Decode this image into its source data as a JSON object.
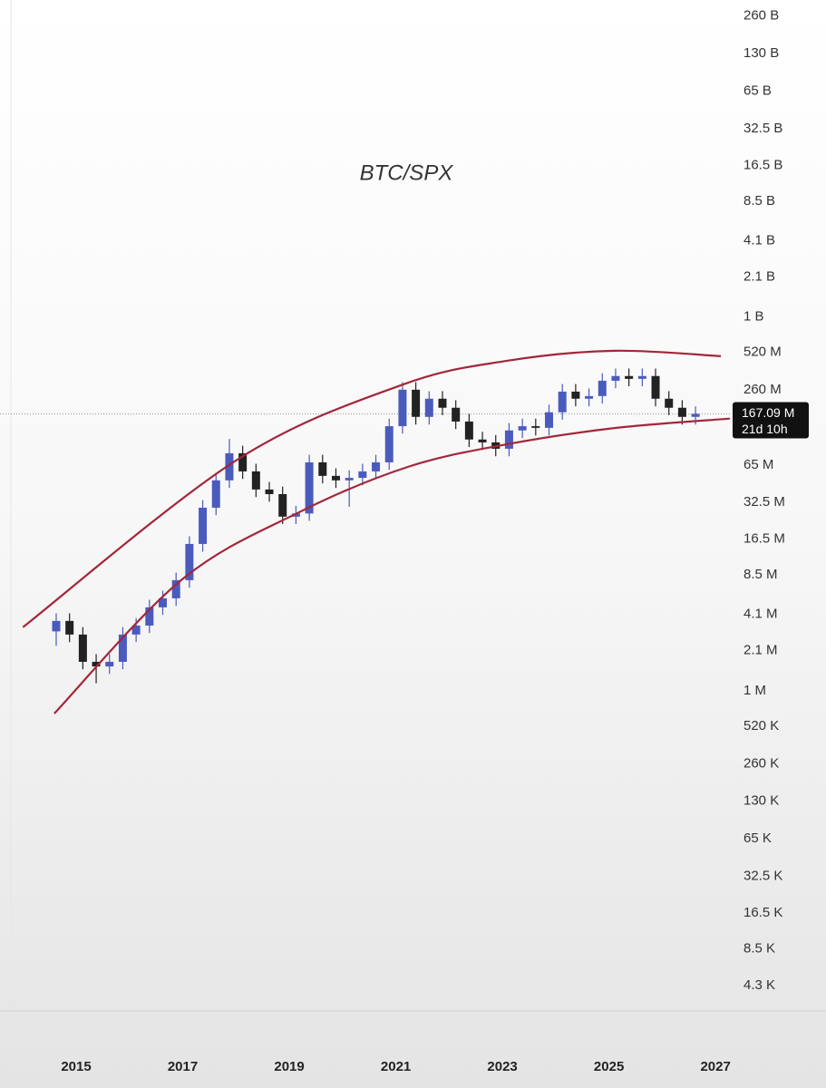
{
  "chart_data": {
    "type": "candlestick",
    "title": "BTC/SPX",
    "log_scale": true,
    "grid": false,
    "up_color": "#4b5bbd",
    "down_color": "#222222",
    "x": [
      2014.625,
      2014.875,
      2015.125,
      2015.375,
      2015.625,
      2015.875,
      2016.125,
      2016.375,
      2016.625,
      2016.875,
      2017.125,
      2017.375,
      2017.625,
      2017.875,
      2018.125,
      2018.375,
      2018.625,
      2018.875,
      2019.125,
      2019.375,
      2019.625,
      2019.875,
      2020.125,
      2020.375,
      2020.625,
      2020.875,
      2021.125,
      2021.375,
      2021.625,
      2021.875,
      2022.125,
      2022.375,
      2022.625,
      2022.875,
      2023.125,
      2023.375,
      2023.625,
      2023.875,
      2024.125,
      2024.375,
      2024.625,
      2024.875,
      2025.125,
      2025.375,
      2025.625,
      2025.875,
      2026.125,
      2026.375,
      2026.625
    ],
    "open": [
      3000000.0,
      3640000.0,
      2830000.0,
      1710000.0,
      1570000.0,
      1710000.0,
      2830000.0,
      3340000.0,
      4680000.0,
      5530000.0,
      7730000.0,
      15100000.0,
      29500000.0,
      48900000.0,
      80700000.0,
      57700000.0,
      41300000.0,
      37900000.0,
      25000000.0,
      26500000.0,
      68200000.0,
      53100000.0,
      48900000.0,
      51200000.0,
      57700000.0,
      68200000.0,
      133000000.0,
      261000000.0,
      158000000.0,
      221000000.0,
      187000000.0,
      145000000.0,
      104000000.0,
      98600000.0,
      87700000.0,
      123000000.0,
      133000000.0,
      129000000.0,
      172000000.0,
      252000000.0,
      221000000.0,
      232000000.0,
      308000000.0,
      336000000.0,
      319000000.0,
      336000000.0,
      221000000.0,
      187000000.0,
      158000000.0
    ],
    "high": [
      4190000.0,
      4190000.0,
      3250000.0,
      1970000.0,
      1970000.0,
      3250000.0,
      3840000.0,
      5380000.0,
      6360000.0,
      8890000.0,
      17400000.0,
      33900000.0,
      56200000.0,
      105000000.0,
      92800000.0,
      66400000.0,
      47500000.0,
      43600000.0,
      30500000.0,
      78400000.0,
      78400000.0,
      61100000.0,
      58900000.0,
      66400000.0,
      78400000.0,
      153000000.0,
      300000000.0,
      300000000.0,
      254000000.0,
      254000000.0,
      215000000.0,
      167000000.0,
      120000000.0,
      113000000.0,
      141000000.0,
      153000000.0,
      153000000.0,
      198000000.0,
      290000000.0,
      290000000.0,
      267000000.0,
      354000000.0,
      386000000.0,
      386000000.0,
      386000000.0,
      386000000.0,
      254000000.0,
      215000000.0,
      192000000.0
    ],
    "low": [
      2300000.0,
      2460000.0,
      1490000.0,
      1150000.0,
      1370000.0,
      1490000.0,
      2460000.0,
      2910000.0,
      4070000.0,
      4810000.0,
      6730000.0,
      13100000.0,
      25700000.0,
      42500000.0,
      50200000.0,
      35900000.0,
      33000000.0,
      21800000.0,
      21800000.0,
      23100000.0,
      46200000.0,
      42500000.0,
      30000000.0,
      44500000.0,
      50200000.0,
      59300000.0,
      116000000.0,
      137000000.0,
      137000000.0,
      163000000.0,
      126000000.0,
      90500000.0,
      85800000.0,
      76300000.0,
      76300000.0,
      107000000.0,
      112000000.0,
      112000000.0,
      150000000.0,
      192000000.0,
      192000000.0,
      202000000.0,
      268000000.0,
      278000000.0,
      278000000.0,
      192000000.0,
      163000000.0,
      137000000.0,
      137000000.0
    ],
    "close": [
      3640000.0,
      2830000.0,
      1710000.0,
      1570000.0,
      1710000.0,
      2830000.0,
      3340000.0,
      4680000.0,
      5530000.0,
      7730000.0,
      15100000.0,
      29500000.0,
      48900000.0,
      80700000.0,
      57700000.0,
      41300000.0,
      37900000.0,
      25000000.0,
      26500000.0,
      68200000.0,
      53100000.0,
      48900000.0,
      51200000.0,
      57700000.0,
      68200000.0,
      133000000.0,
      261000000.0,
      158000000.0,
      221000000.0,
      187000000.0,
      145000000.0,
      104000000.0,
      98600000.0,
      87700000.0,
      123000000.0,
      133000000.0,
      129000000.0,
      172000000.0,
      252000000.0,
      221000000.0,
      232000000.0,
      308000000.0,
      336000000.0,
      319000000.0,
      336000000.0,
      221000000.0,
      187000000.0,
      158000000.0,
      167090000.0
    ],
    "last_value_label": "167.09 M",
    "countdown": "21d 10h",
    "channel_upper": {
      "color": "#a3263a",
      "x": [
        2014.0,
        2018.0,
        2021.1,
        2023.1,
        2025.1,
        2027.1
      ],
      "values": [
        3240000.0,
        70600000.0,
        284000000.0,
        446000000.0,
        536000000.0,
        485000000.0
      ]
    },
    "channel_lower": {
      "color": "#a3263a",
      "x": [
        2014.59,
        2016.97,
        2019.19,
        2021.23,
        2023.1,
        2025.14,
        2027.27
      ],
      "values": [
        658000.0,
        7730000.0,
        27200000.0,
        62800000.0,
        95500000.0,
        129000000.0,
        153000000.0
      ]
    },
    "xlim": [
      2013.57,
      2027.27
    ],
    "xticks": [
      2015,
      2017,
      2019,
      2021,
      2023,
      2025,
      2027
    ],
    "ylim": [
      2700,
      350000000000.0
    ],
    "yticks": [
      {
        "value": 260000000000.0,
        "label": "260 B"
      },
      {
        "value": 130000000000.0,
        "label": "130 B"
      },
      {
        "value": 65000000000.0,
        "label": "65 B"
      },
      {
        "value": 32500000000.0,
        "label": "32.5 B"
      },
      {
        "value": 16500000000.0,
        "label": "16.5 B"
      },
      {
        "value": 8500000000.0,
        "label": "8.5 B"
      },
      {
        "value": 4100000000.0,
        "label": "4.1 B"
      },
      {
        "value": 2100000000.0,
        "label": "2.1 B"
      },
      {
        "value": 1000000000.0,
        "label": "1 B"
      },
      {
        "value": 520000000.0,
        "label": "520 M"
      },
      {
        "value": 260000000.0,
        "label": "260 M"
      },
      {
        "value": 65000000.0,
        "label": "65 M"
      },
      {
        "value": 32500000.0,
        "label": "32.5 M"
      },
      {
        "value": 16500000.0,
        "label": "16.5 M"
      },
      {
        "value": 8500000.0,
        "label": "8.5 M"
      },
      {
        "value": 4100000.0,
        "label": "4.1 M"
      },
      {
        "value": 2100000.0,
        "label": "2.1 M"
      },
      {
        "value": 1000000.0,
        "label": "1 M"
      },
      {
        "value": 520000.0,
        "label": "520 K"
      },
      {
        "value": 260000.0,
        "label": "260 K"
      },
      {
        "value": 130000.0,
        "label": "130 K"
      },
      {
        "value": 65000.0,
        "label": "65 K"
      },
      {
        "value": 32500.0,
        "label": "32.5 K"
      },
      {
        "value": 16500.0,
        "label": "16.5 K"
      },
      {
        "value": 8500.0,
        "label": "8.5 K"
      },
      {
        "value": 4300.0,
        "label": "4.3 K"
      }
    ]
  }
}
